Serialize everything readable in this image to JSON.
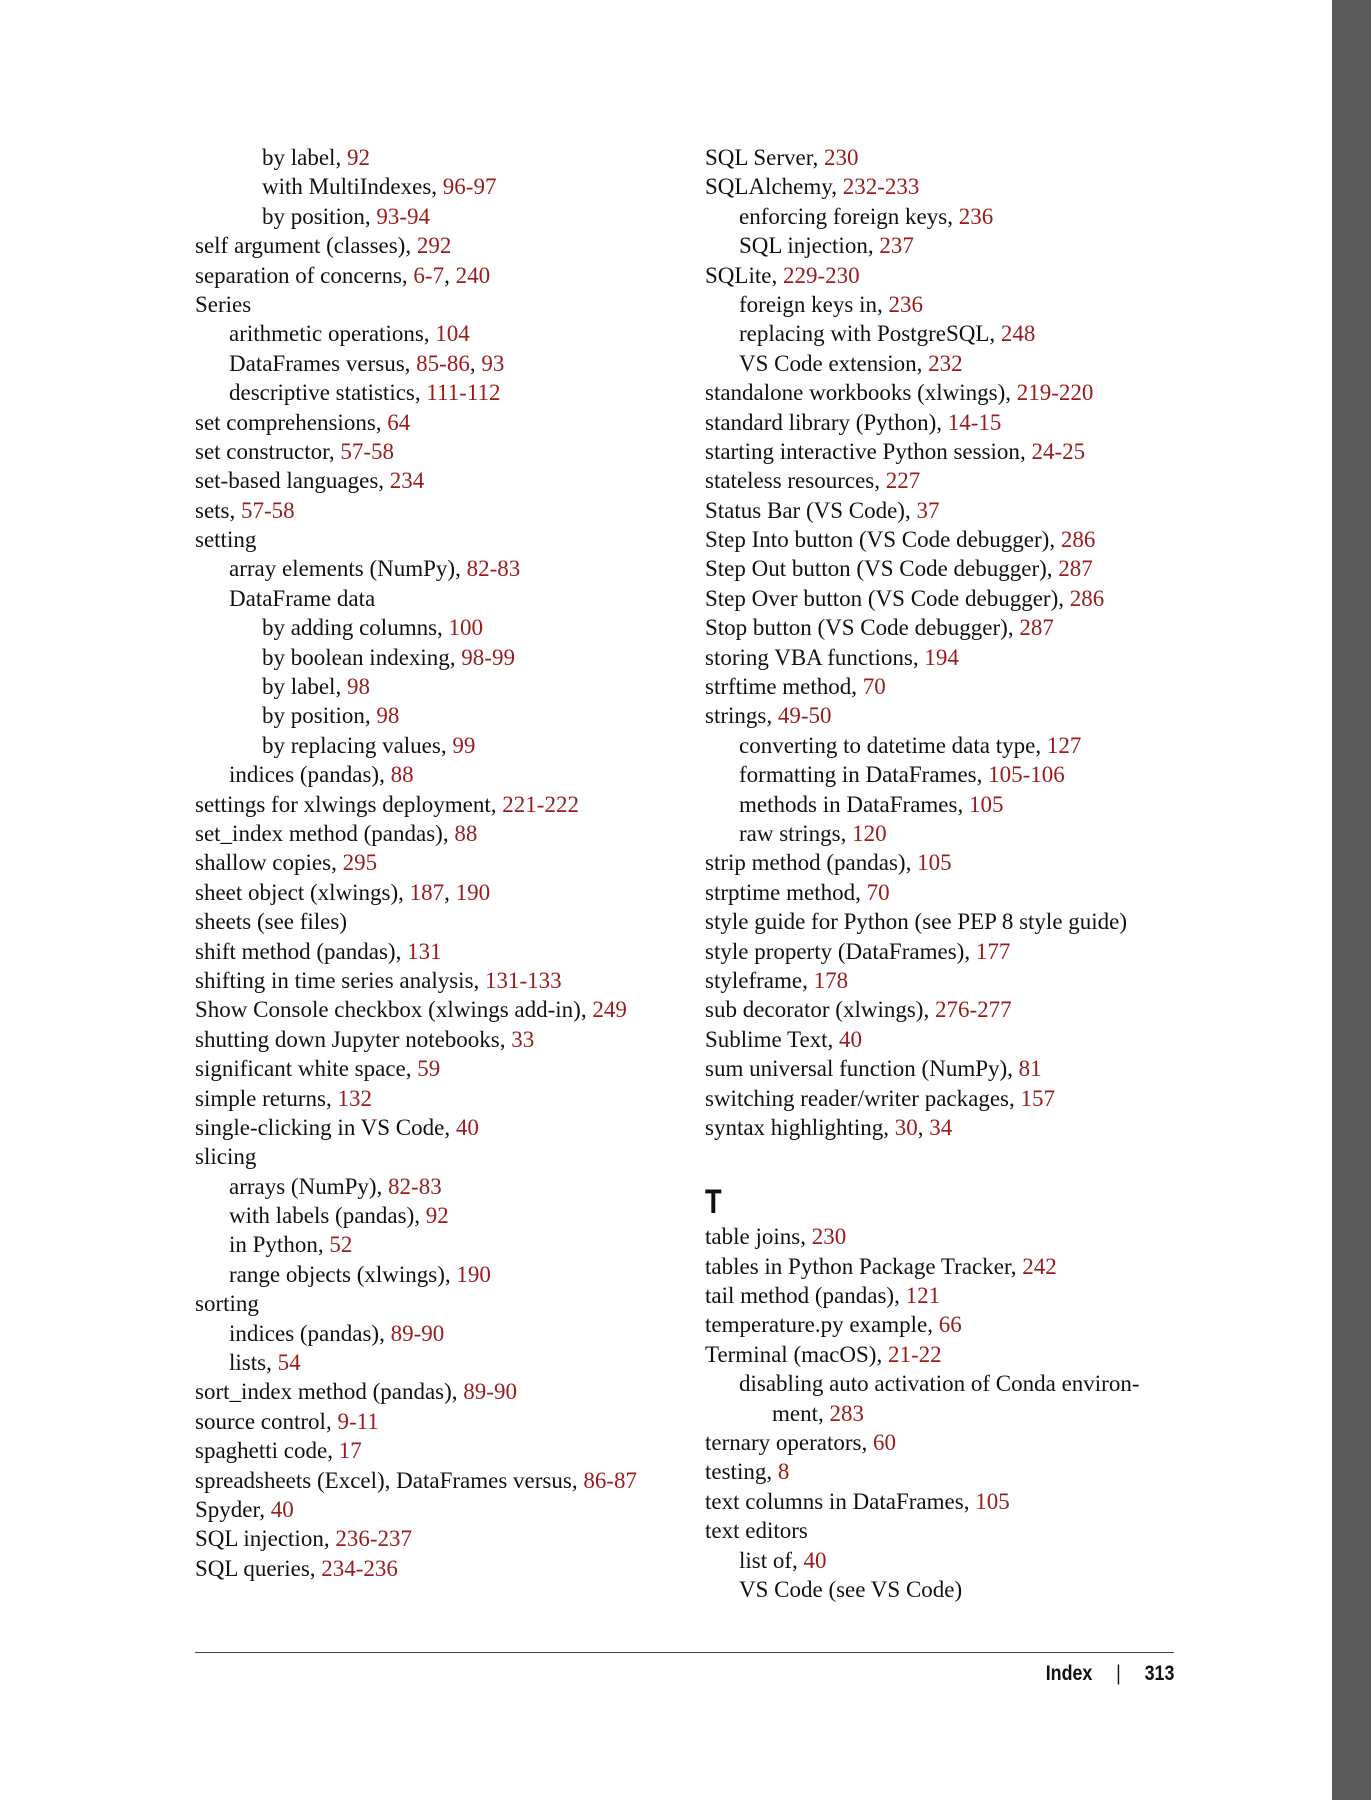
{
  "colors": {
    "page_number": "#9b1a1a",
    "sidebar": "#5a5a5a"
  },
  "left_column": [
    {
      "level": 3,
      "text": "by label",
      "pages": [
        "92"
      ]
    },
    {
      "level": 3,
      "text": "with MultiIndexes",
      "pages": [
        "96-97"
      ]
    },
    {
      "level": 3,
      "text": "by position",
      "pages": [
        "93-94"
      ]
    },
    {
      "level": 1,
      "text": "self argument (classes)",
      "pages": [
        "292"
      ]
    },
    {
      "level": 1,
      "text": "separation of concerns",
      "pages": [
        "6-7",
        "240"
      ]
    },
    {
      "level": 1,
      "text": "Series",
      "pages": []
    },
    {
      "level": 2,
      "text": "arithmetic operations",
      "pages": [
        "104"
      ]
    },
    {
      "level": 2,
      "text": "DataFrames versus",
      "pages": [
        "85-86",
        "93"
      ]
    },
    {
      "level": 2,
      "text": "descriptive statistics",
      "pages": [
        "111-112"
      ]
    },
    {
      "level": 1,
      "text": "set comprehensions",
      "pages": [
        "64"
      ]
    },
    {
      "level": 1,
      "text": "set constructor",
      "pages": [
        "57-58"
      ]
    },
    {
      "level": 1,
      "text": "set-based languages",
      "pages": [
        "234"
      ]
    },
    {
      "level": 1,
      "text": "sets",
      "pages": [
        "57-58"
      ]
    },
    {
      "level": 1,
      "text": "setting",
      "pages": []
    },
    {
      "level": 2,
      "text": "array elements (NumPy)",
      "pages": [
        "82-83"
      ]
    },
    {
      "level": 2,
      "text": "DataFrame data",
      "pages": []
    },
    {
      "level": 3,
      "text": "by adding columns",
      "pages": [
        "100"
      ]
    },
    {
      "level": 3,
      "text": "by boolean indexing",
      "pages": [
        "98-99"
      ]
    },
    {
      "level": 3,
      "text": "by label",
      "pages": [
        "98"
      ]
    },
    {
      "level": 3,
      "text": "by position",
      "pages": [
        "98"
      ]
    },
    {
      "level": 3,
      "text": "by replacing values",
      "pages": [
        "99"
      ]
    },
    {
      "level": 2,
      "text": "indices (pandas)",
      "pages": [
        "88"
      ]
    },
    {
      "level": 1,
      "text": "settings for xlwings deployment",
      "pages": [
        "221-222"
      ]
    },
    {
      "level": 1,
      "text": "set_index method (pandas)",
      "pages": [
        "88"
      ]
    },
    {
      "level": 1,
      "text": "shallow copies",
      "pages": [
        "295"
      ]
    },
    {
      "level": 1,
      "text": "sheet object (xlwings)",
      "pages": [
        "187",
        "190"
      ]
    },
    {
      "level": 1,
      "text": "sheets (see files)",
      "pages": []
    },
    {
      "level": 1,
      "text": "shift method (pandas)",
      "pages": [
        "131"
      ]
    },
    {
      "level": 1,
      "text": "shifting in time series analysis",
      "pages": [
        "131-133"
      ]
    },
    {
      "level": 1,
      "text": "Show Console checkbox (xlwings add-in)",
      "pages": [
        "249"
      ]
    },
    {
      "level": 1,
      "text": "shutting down Jupyter notebooks",
      "pages": [
        "33"
      ]
    },
    {
      "level": 1,
      "text": "significant white space",
      "pages": [
        "59"
      ]
    },
    {
      "level": 1,
      "text": "simple returns",
      "pages": [
        "132"
      ]
    },
    {
      "level": 1,
      "text": "single-clicking in VS Code",
      "pages": [
        "40"
      ]
    },
    {
      "level": 1,
      "text": "slicing",
      "pages": []
    },
    {
      "level": 2,
      "text": "arrays (NumPy)",
      "pages": [
        "82-83"
      ]
    },
    {
      "level": 2,
      "text": "with labels (pandas)",
      "pages": [
        "92"
      ]
    },
    {
      "level": 2,
      "text": "in Python",
      "pages": [
        "52"
      ]
    },
    {
      "level": 2,
      "text": "range objects (xlwings)",
      "pages": [
        "190"
      ]
    },
    {
      "level": 1,
      "text": "sorting",
      "pages": []
    },
    {
      "level": 2,
      "text": "indices (pandas)",
      "pages": [
        "89-90"
      ]
    },
    {
      "level": 2,
      "text": "lists",
      "pages": [
        "54"
      ]
    },
    {
      "level": 1,
      "text": "sort_index method (pandas)",
      "pages": [
        "89-90"
      ]
    },
    {
      "level": 1,
      "text": "source control",
      "pages": [
        "9-11"
      ]
    },
    {
      "level": 1,
      "text": "spaghetti code",
      "pages": [
        "17"
      ]
    },
    {
      "level": 1,
      "text": "spreadsheets (Excel), DataFrames versus",
      "pages": [
        "86-87"
      ]
    },
    {
      "level": 1,
      "text": "Spyder",
      "pages": [
        "40"
      ]
    },
    {
      "level": 1,
      "text": "SQL injection",
      "pages": [
        "236-237"
      ]
    },
    {
      "level": 1,
      "text": "SQL queries",
      "pages": [
        "234-236"
      ]
    }
  ],
  "right_column": [
    {
      "level": 1,
      "text": "SQL Server",
      "pages": [
        "230"
      ]
    },
    {
      "level": 1,
      "text": "SQLAlchemy",
      "pages": [
        "232-233"
      ]
    },
    {
      "level": 2,
      "text": "enforcing foreign keys",
      "pages": [
        "236"
      ]
    },
    {
      "level": 2,
      "text": "SQL injection",
      "pages": [
        "237"
      ]
    },
    {
      "level": 1,
      "text": "SQLite",
      "pages": [
        "229-230"
      ]
    },
    {
      "level": 2,
      "text": "foreign keys in",
      "pages": [
        "236"
      ]
    },
    {
      "level": 2,
      "text": "replacing with PostgreSQL",
      "pages": [
        "248"
      ]
    },
    {
      "level": 2,
      "text": "VS Code extension",
      "pages": [
        "232"
      ]
    },
    {
      "level": 1,
      "text": "standalone workbooks (xlwings)",
      "pages": [
        "219-220"
      ]
    },
    {
      "level": 1,
      "text": "standard library (Python)",
      "pages": [
        "14-15"
      ]
    },
    {
      "level": 1,
      "text": "starting interactive Python session",
      "pages": [
        "24-25"
      ]
    },
    {
      "level": 1,
      "text": "stateless resources",
      "pages": [
        "227"
      ]
    },
    {
      "level": 1,
      "text": "Status Bar (VS Code)",
      "pages": [
        "37"
      ]
    },
    {
      "level": 1,
      "text": "Step Into button (VS Code debugger)",
      "pages": [
        "286"
      ]
    },
    {
      "level": 1,
      "text": "Step Out button (VS Code debugger)",
      "pages": [
        "287"
      ]
    },
    {
      "level": 1,
      "text": "Step Over button (VS Code debugger)",
      "pages": [
        "286"
      ]
    },
    {
      "level": 1,
      "text": "Stop button (VS Code debugger)",
      "pages": [
        "287"
      ]
    },
    {
      "level": 1,
      "text": "storing VBA functions",
      "pages": [
        "194"
      ]
    },
    {
      "level": 1,
      "text": "strftime method",
      "pages": [
        "70"
      ]
    },
    {
      "level": 1,
      "text": "strings",
      "pages": [
        "49-50"
      ]
    },
    {
      "level": 2,
      "text": "converting to datetime data type",
      "pages": [
        "127"
      ]
    },
    {
      "level": 2,
      "text": "formatting in DataFrames",
      "pages": [
        "105-106"
      ]
    },
    {
      "level": 2,
      "text": "methods in DataFrames",
      "pages": [
        "105"
      ]
    },
    {
      "level": 2,
      "text": "raw strings",
      "pages": [
        "120"
      ]
    },
    {
      "level": 1,
      "text": "strip method (pandas)",
      "pages": [
        "105"
      ]
    },
    {
      "level": 1,
      "text": "strptime method",
      "pages": [
        "70"
      ]
    },
    {
      "level": 1,
      "text": "style guide for Python (see PEP 8 style guide)",
      "pages": []
    },
    {
      "level": 1,
      "text": "style property (DataFrames)",
      "pages": [
        "177"
      ]
    },
    {
      "level": 1,
      "text": "styleframe",
      "pages": [
        "178"
      ]
    },
    {
      "level": 1,
      "text": "sub decorator (xlwings)",
      "pages": [
        "276-277"
      ]
    },
    {
      "level": 1,
      "text": "Sublime Text",
      "pages": [
        "40"
      ]
    },
    {
      "level": 1,
      "text": "sum universal function (NumPy)",
      "pages": [
        "81"
      ]
    },
    {
      "level": 1,
      "text": "switching reader/writer packages",
      "pages": [
        "157"
      ]
    },
    {
      "level": 1,
      "text": "syntax highlighting",
      "pages": [
        "30",
        "34"
      ]
    },
    {
      "letter": "T"
    },
    {
      "level": 1,
      "text": "table joins",
      "pages": [
        "230"
      ]
    },
    {
      "level": 1,
      "text": "tables in Python Package Tracker",
      "pages": [
        "242"
      ]
    },
    {
      "level": 1,
      "text": "tail method (pandas)",
      "pages": [
        "121"
      ]
    },
    {
      "level": 1,
      "text": "temperature.py example",
      "pages": [
        "66"
      ]
    },
    {
      "level": 1,
      "text": "Terminal (macOS)",
      "pages": [
        "21-22"
      ]
    },
    {
      "level": 2,
      "text": "disabling auto activation of Conda environ-",
      "continuation": "ment",
      "pages": [
        "283"
      ]
    },
    {
      "level": 1,
      "text": "ternary operators",
      "pages": [
        "60"
      ]
    },
    {
      "level": 1,
      "text": "testing",
      "pages": [
        "8"
      ]
    },
    {
      "level": 1,
      "text": "text columns in DataFrames",
      "pages": [
        "105"
      ]
    },
    {
      "level": 1,
      "text": "text editors",
      "pages": []
    },
    {
      "level": 2,
      "text": "list of",
      "pages": [
        "40"
      ]
    },
    {
      "level": 2,
      "text": "VS Code (see VS Code)",
      "pages": []
    }
  ],
  "footer": {
    "section": "Index",
    "separator": "|",
    "page_number": "313"
  }
}
